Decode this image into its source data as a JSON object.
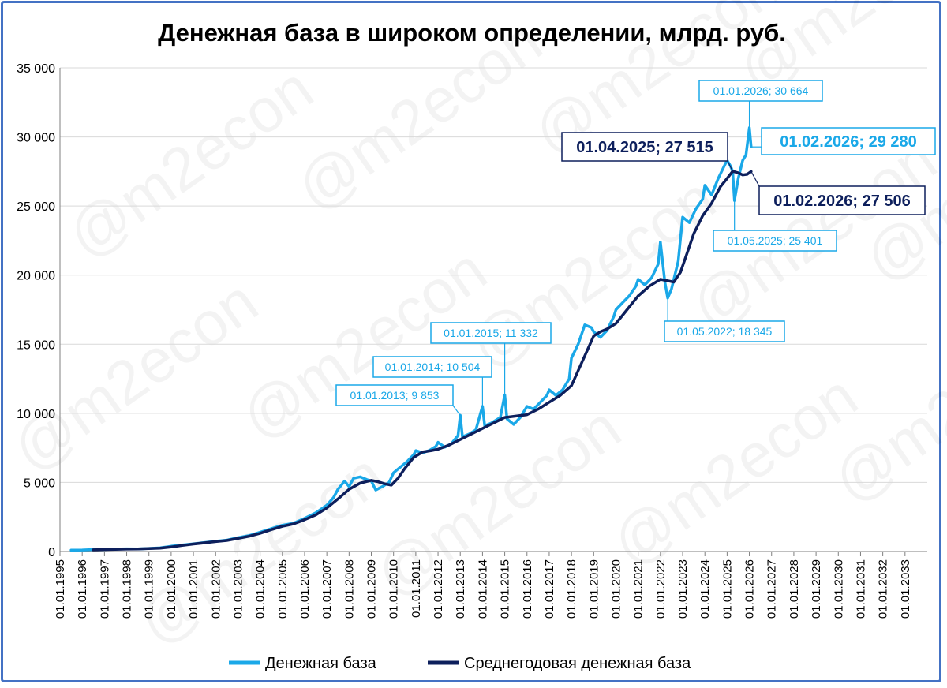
{
  "chart_data": {
    "type": "line",
    "title": "Денежная база в широком определении, млрд. руб.",
    "watermark": "@m2econ",
    "y_ticks": [
      "0",
      "5 000",
      "10 000",
      "15 000",
      "20 000",
      "25 000",
      "30 000",
      "35 000"
    ],
    "ylim": [
      0,
      35000
    ],
    "x_ticks": [
      "01.01.1995",
      "01.01.1996",
      "01.01.1997",
      "01.01.1998",
      "01.01.1999",
      "01.01.2000",
      "01.01.2001",
      "01.01.2002",
      "01.01.2003",
      "01.01.2004",
      "01.01.2005",
      "01.01.2006",
      "01.01.2007",
      "01.01.2008",
      "01.01.2009",
      "01.01.2010",
      "01.01.2011",
      "01.01.2012",
      "01.01.2013",
      "01.01.2014",
      "01.01.2015",
      "01.01.2016",
      "01.01.2017",
      "01.01.2018",
      "01.01.2019",
      "01.01.2020",
      "01.01.2021",
      "01.01.2022",
      "01.01.2023",
      "01.01.2024",
      "01.01.2025",
      "01.01.2026",
      "01.01.2027",
      "01.01.2028",
      "01.01.2029",
      "01.01.2030",
      "01.01.2031",
      "01.01.2032",
      "01.01.2033"
    ],
    "xlim": [
      1995.0,
      2034.0
    ],
    "grid": true,
    "legend_position": "bottom",
    "series": [
      {
        "name": "Денежная база",
        "color": "#1aa8e8",
        "points": [
          [
            1995.5,
            100
          ],
          [
            1996.0,
            110
          ],
          [
            1996.5,
            140
          ],
          [
            1997.0,
            150
          ],
          [
            1997.5,
            175
          ],
          [
            1998.0,
            195
          ],
          [
            1998.5,
            190
          ],
          [
            1999.0,
            220
          ],
          [
            1999.5,
            260
          ],
          [
            2000.0,
            380
          ],
          [
            2000.5,
            470
          ],
          [
            2001.0,
            560
          ],
          [
            2001.5,
            650
          ],
          [
            2002.0,
            740
          ],
          [
            2002.5,
            820
          ],
          [
            2003.0,
            1000
          ],
          [
            2003.5,
            1150
          ],
          [
            2004.0,
            1400
          ],
          [
            2004.5,
            1650
          ],
          [
            2005.0,
            1900
          ],
          [
            2005.5,
            2050
          ],
          [
            2006.0,
            2400
          ],
          [
            2006.5,
            2800
          ],
          [
            2007.0,
            3350
          ],
          [
            2007.3,
            3900
          ],
          [
            2007.5,
            4500
          ],
          [
            2007.8,
            5100
          ],
          [
            2008.0,
            4700
          ],
          [
            2008.2,
            5300
          ],
          [
            2008.5,
            5400
          ],
          [
            2008.8,
            5200
          ],
          [
            2009.0,
            5100
          ],
          [
            2009.2,
            4450
          ],
          [
            2009.5,
            4700
          ],
          [
            2009.8,
            5000
          ],
          [
            2010.0,
            5700
          ],
          [
            2010.3,
            6100
          ],
          [
            2010.6,
            6500
          ],
          [
            2010.9,
            7000
          ],
          [
            2011.0,
            7300
          ],
          [
            2011.3,
            7150
          ],
          [
            2011.6,
            7300
          ],
          [
            2011.9,
            7600
          ],
          [
            2012.0,
            7900
          ],
          [
            2012.3,
            7550
          ],
          [
            2012.6,
            7800
          ],
          [
            2012.9,
            8400
          ],
          [
            2013.0,
            9853
          ],
          [
            2013.1,
            8300
          ],
          [
            2013.4,
            8500
          ],
          [
            2013.7,
            8800
          ],
          [
            2014.0,
            10504
          ],
          [
            2014.1,
            9100
          ],
          [
            2014.4,
            9300
          ],
          [
            2014.8,
            9700
          ],
          [
            2015.0,
            11332
          ],
          [
            2015.1,
            9600
          ],
          [
            2015.4,
            9200
          ],
          [
            2015.7,
            9700
          ],
          [
            2016.0,
            10500
          ],
          [
            2016.3,
            10300
          ],
          [
            2016.6,
            10800
          ],
          [
            2016.9,
            11300
          ],
          [
            2017.0,
            11700
          ],
          [
            2017.3,
            11300
          ],
          [
            2017.6,
            11700
          ],
          [
            2017.9,
            12500
          ],
          [
            2018.0,
            14000
          ],
          [
            2018.3,
            15000
          ],
          [
            2018.6,
            16400
          ],
          [
            2018.9,
            16200
          ],
          [
            2019.0,
            15900
          ],
          [
            2019.3,
            15500
          ],
          [
            2019.6,
            16000
          ],
          [
            2019.9,
            17000
          ],
          [
            2020.0,
            17500
          ],
          [
            2020.3,
            18000
          ],
          [
            2020.6,
            18500
          ],
          [
            2020.9,
            19200
          ],
          [
            2021.0,
            19700
          ],
          [
            2021.3,
            19300
          ],
          [
            2021.6,
            19800
          ],
          [
            2021.9,
            20800
          ],
          [
            2022.0,
            22400
          ],
          [
            2022.2,
            19500
          ],
          [
            2022.33,
            18345
          ],
          [
            2022.5,
            19000
          ],
          [
            2022.8,
            21000
          ],
          [
            2023.0,
            24200
          ],
          [
            2023.3,
            23800
          ],
          [
            2023.6,
            24800
          ],
          [
            2023.9,
            25500
          ],
          [
            2024.0,
            26500
          ],
          [
            2024.3,
            25800
          ],
          [
            2024.6,
            27000
          ],
          [
            2024.9,
            28000
          ],
          [
            2025.0,
            28300
          ],
          [
            2025.15,
            27900
          ],
          [
            2025.25,
            27515
          ],
          [
            2025.33,
            25401
          ],
          [
            2025.5,
            27000
          ],
          [
            2025.7,
            28300
          ],
          [
            2025.85,
            28700
          ],
          [
            2026.0,
            30664
          ],
          [
            2026.08,
            29280
          ]
        ]
      },
      {
        "name": "Среднегодовая денежная база",
        "color": "#0d1f5c",
        "points": [
          [
            1996.5,
            120
          ],
          [
            1997.0,
            140
          ],
          [
            1997.5,
            160
          ],
          [
            1998.0,
            175
          ],
          [
            1998.5,
            190
          ],
          [
            1999.0,
            210
          ],
          [
            1999.5,
            240
          ],
          [
            2000.0,
            330
          ],
          [
            2000.5,
            440
          ],
          [
            2001.0,
            540
          ],
          [
            2001.5,
            630
          ],
          [
            2002.0,
            720
          ],
          [
            2002.5,
            800
          ],
          [
            2003.0,
            950
          ],
          [
            2003.5,
            1100
          ],
          [
            2004.0,
            1320
          ],
          [
            2004.5,
            1580
          ],
          [
            2005.0,
            1820
          ],
          [
            2005.5,
            2000
          ],
          [
            2006.0,
            2300
          ],
          [
            2006.5,
            2650
          ],
          [
            2007.0,
            3150
          ],
          [
            2007.5,
            3800
          ],
          [
            2008.0,
            4500
          ],
          [
            2008.5,
            4950
          ],
          [
            2009.0,
            5150
          ],
          [
            2009.3,
            5050
          ],
          [
            2009.6,
            4900
          ],
          [
            2009.9,
            4800
          ],
          [
            2010.2,
            5300
          ],
          [
            2010.5,
            6000
          ],
          [
            2010.9,
            6800
          ],
          [
            2011.3,
            7200
          ],
          [
            2011.7,
            7300
          ],
          [
            2012.0,
            7400
          ],
          [
            2012.5,
            7700
          ],
          [
            2013.0,
            8100
          ],
          [
            2013.5,
            8500
          ],
          [
            2014.0,
            8900
          ],
          [
            2014.5,
            9300
          ],
          [
            2015.0,
            9700
          ],
          [
            2015.5,
            9800
          ],
          [
            2016.0,
            9900
          ],
          [
            2016.5,
            10300
          ],
          [
            2017.0,
            10800
          ],
          [
            2017.5,
            11300
          ],
          [
            2018.0,
            12000
          ],
          [
            2018.5,
            13800
          ],
          [
            2019.0,
            15600
          ],
          [
            2019.3,
            15900
          ],
          [
            2019.6,
            16100
          ],
          [
            2020.0,
            16500
          ],
          [
            2020.5,
            17500
          ],
          [
            2021.0,
            18500
          ],
          [
            2021.5,
            19200
          ],
          [
            2022.0,
            19700
          ],
          [
            2022.3,
            19600
          ],
          [
            2022.6,
            19500
          ],
          [
            2022.9,
            20200
          ],
          [
            2023.2,
            21600
          ],
          [
            2023.5,
            23000
          ],
          [
            2023.9,
            24300
          ],
          [
            2024.3,
            25200
          ],
          [
            2024.7,
            26400
          ],
          [
            2025.0,
            27000
          ],
          [
            2025.25,
            27515
          ],
          [
            2025.5,
            27400
          ],
          [
            2025.7,
            27250
          ],
          [
            2025.9,
            27300
          ],
          [
            2026.08,
            27506
          ]
        ]
      }
    ],
    "annotations": [
      {
        "label": "01.01.2013; 9 853",
        "style": "light",
        "x": 2013.0,
        "y": 9853
      },
      {
        "label": "01.01.2014; 10 504",
        "style": "light",
        "x": 2014.0,
        "y": 10504
      },
      {
        "label": "01.01.2015; 11 332",
        "style": "light",
        "x": 2015.0,
        "y": 11332
      },
      {
        "label": "01.05.2022; 18 345",
        "style": "light",
        "x": 2022.33,
        "y": 18345
      },
      {
        "label": "01.05.2025; 25 401",
        "style": "light",
        "x": 2025.33,
        "y": 25401
      },
      {
        "label": "01.01.2026; 30 664",
        "style": "light",
        "x": 2026.0,
        "y": 30664
      },
      {
        "label": "01.02.2026;  29 280",
        "style": "light-big",
        "x": 2026.08,
        "y": 29280
      },
      {
        "label": "01.04.2025;  27 515",
        "style": "dark",
        "x": 2025.25,
        "y": 27515
      },
      {
        "label": "01.02.2026;  27 506",
        "style": "dark",
        "x": 2026.08,
        "y": 27506
      }
    ]
  }
}
